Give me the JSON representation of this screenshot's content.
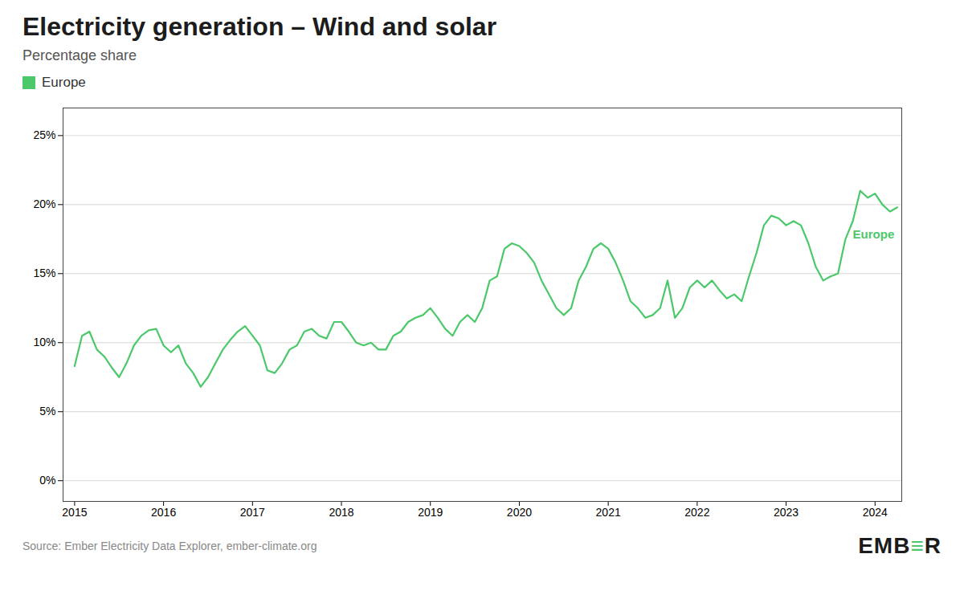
{
  "chart_data": {
    "type": "line",
    "title": "Electricity generation – Wind and solar",
    "subtitle": "Percentage share",
    "x": [
      2015.0,
      2015.083,
      2015.167,
      2015.25,
      2015.333,
      2015.417,
      2015.5,
      2015.583,
      2015.667,
      2015.75,
      2015.833,
      2015.917,
      2016.0,
      2016.083,
      2016.167,
      2016.25,
      2016.333,
      2016.417,
      2016.5,
      2016.583,
      2016.667,
      2016.75,
      2016.833,
      2016.917,
      2017.0,
      2017.083,
      2017.167,
      2017.25,
      2017.333,
      2017.417,
      2017.5,
      2017.583,
      2017.667,
      2017.75,
      2017.833,
      2017.917,
      2018.0,
      2018.083,
      2018.167,
      2018.25,
      2018.333,
      2018.417,
      2018.5,
      2018.583,
      2018.667,
      2018.75,
      2018.833,
      2018.917,
      2019.0,
      2019.083,
      2019.167,
      2019.25,
      2019.333,
      2019.417,
      2019.5,
      2019.583,
      2019.667,
      2019.75,
      2019.833,
      2019.917,
      2020.0,
      2020.083,
      2020.167,
      2020.25,
      2020.333,
      2020.417,
      2020.5,
      2020.583,
      2020.667,
      2020.75,
      2020.833,
      2020.917,
      2021.0,
      2021.083,
      2021.167,
      2021.25,
      2021.333,
      2021.417,
      2021.5,
      2021.583,
      2021.667,
      2021.75,
      2021.833,
      2021.917,
      2022.0,
      2022.083,
      2022.167,
      2022.25,
      2022.333,
      2022.417,
      2022.5,
      2022.583,
      2022.667,
      2022.75,
      2022.833,
      2022.917,
      2023.0,
      2023.083,
      2023.167,
      2023.25,
      2023.333,
      2023.417,
      2023.5,
      2023.583,
      2023.667,
      2023.75,
      2023.833,
      2023.917,
      2024.0,
      2024.083,
      2024.167,
      2024.25
    ],
    "series": [
      {
        "name": "Europe",
        "color": "#4bc86a",
        "values": [
          8.3,
          10.5,
          10.8,
          9.5,
          9.0,
          8.2,
          7.5,
          8.5,
          9.8,
          10.5,
          10.9,
          11.0,
          9.8,
          9.3,
          9.8,
          8.5,
          7.8,
          6.8,
          7.5,
          8.5,
          9.5,
          10.2,
          10.8,
          11.2,
          10.5,
          9.8,
          8.0,
          7.8,
          8.5,
          9.5,
          9.8,
          10.8,
          11.0,
          10.5,
          10.3,
          11.5,
          11.5,
          10.8,
          10.0,
          9.8,
          10.0,
          9.5,
          9.5,
          10.5,
          10.8,
          11.5,
          11.8,
          12.0,
          12.5,
          11.8,
          11.0,
          10.5,
          11.5,
          12.0,
          11.5,
          12.5,
          14.5,
          14.8,
          16.8,
          17.2,
          17.0,
          16.5,
          15.8,
          14.5,
          13.5,
          12.5,
          12.0,
          12.5,
          14.5,
          15.5,
          16.8,
          17.2,
          16.8,
          15.8,
          14.5,
          13.0,
          12.5,
          11.8,
          12.0,
          12.5,
          14.5,
          11.8,
          12.5,
          14.0,
          14.5,
          14.0,
          14.5,
          13.8,
          13.2,
          13.5,
          13.0,
          14.8,
          16.5,
          18.5,
          19.2,
          19.0,
          18.5,
          18.8,
          18.5,
          17.2,
          15.5,
          14.5,
          14.8,
          15.0,
          17.5,
          18.8,
          21.0,
          20.5,
          20.8,
          20.0,
          19.5,
          19.8
        ]
      }
    ],
    "xlim": [
      2014.87,
      2024.3
    ],
    "xticks": [
      2015,
      2016,
      2017,
      2018,
      2019,
      2020,
      2021,
      2022,
      2023,
      2024
    ],
    "ylim": [
      -1.5,
      27
    ],
    "yticks": [
      {
        "value": 0,
        "label": "0%"
      },
      {
        "value": 5,
        "label": "5%"
      },
      {
        "value": 10,
        "label": "10%"
      },
      {
        "value": 15,
        "label": "15%"
      },
      {
        "value": 20,
        "label": "20%"
      },
      {
        "value": 25,
        "label": "25%"
      }
    ],
    "grid": "y",
    "legend": "top-left",
    "annotations": [
      {
        "text": "Europe",
        "x": 2023.75,
        "y": 17.8
      }
    ],
    "source": "Source: Ember Electricity Data Explorer, ember-climate.org",
    "logo": [
      "EMB",
      "≡",
      "R"
    ]
  }
}
